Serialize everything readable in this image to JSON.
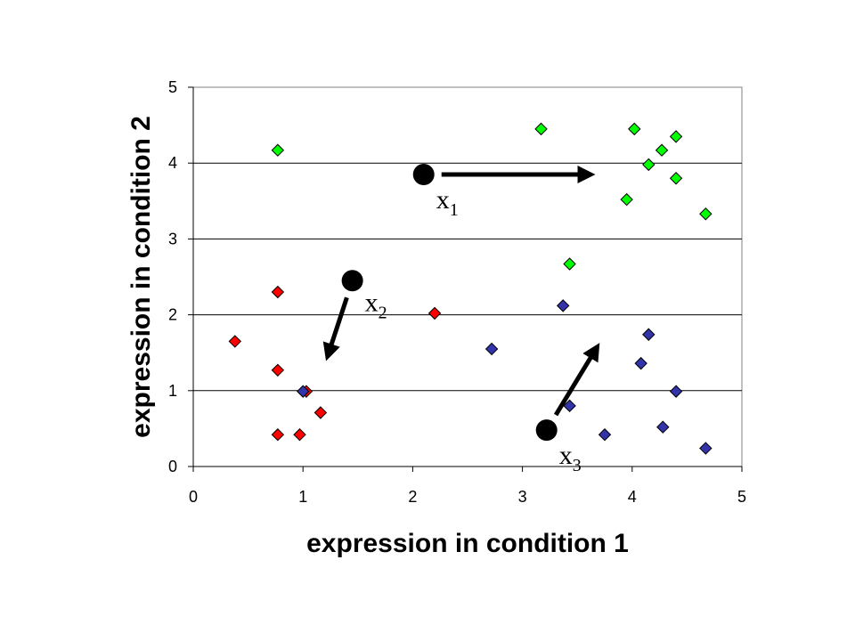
{
  "chart_data": {
    "type": "scatter",
    "title": "",
    "xlabel": "expression in condition 1",
    "ylabel": "expression in condition 2",
    "xlim": [
      0,
      5
    ],
    "ylim": [
      0,
      5
    ],
    "xticks": [
      0,
      1,
      2,
      3,
      4,
      5
    ],
    "yticks": [
      0,
      1,
      2,
      3,
      4,
      5
    ],
    "grid": "horizontal",
    "marker": "diamond",
    "series": [
      {
        "color": "#ff0000",
        "points": [
          [
            0.38,
            1.65
          ],
          [
            0.77,
            2.3
          ],
          [
            0.77,
            1.27
          ],
          [
            0.77,
            0.42
          ],
          [
            0.97,
            0.42
          ],
          [
            1.03,
            0.99
          ],
          [
            1.16,
            0.71
          ],
          [
            2.2,
            2.02
          ]
        ]
      },
      {
        "color": "#00ff00",
        "points": [
          [
            0.77,
            4.17
          ],
          [
            3.17,
            4.45
          ],
          [
            3.43,
            2.67
          ],
          [
            3.95,
            3.52
          ],
          [
            4.02,
            4.45
          ],
          [
            4.15,
            3.98
          ],
          [
            4.27,
            4.17
          ],
          [
            4.4,
            4.35
          ],
          [
            4.4,
            3.8
          ],
          [
            4.67,
            3.33
          ]
        ]
      },
      {
        "color": "#3333aa",
        "points": [
          [
            1.0,
            0.99
          ],
          [
            2.72,
            1.55
          ],
          [
            3.37,
            2.12
          ],
          [
            3.43,
            0.8
          ],
          [
            3.75,
            0.42
          ],
          [
            4.08,
            1.36
          ],
          [
            4.15,
            1.74
          ],
          [
            4.28,
            0.52
          ],
          [
            4.4,
            0.99
          ],
          [
            4.67,
            0.24
          ]
        ]
      }
    ],
    "centroids": [
      {
        "label": "x",
        "sub": "1",
        "x": 2.1,
        "y": 3.85,
        "arrow_to": [
          3.6,
          3.85
        ]
      },
      {
        "label": "x",
        "sub": "2",
        "x": 1.45,
        "y": 2.45,
        "arrow_to": [
          1.23,
          1.48
        ]
      },
      {
        "label": "x",
        "sub": "3",
        "x": 3.22,
        "y": 0.48,
        "arrow_to": [
          3.67,
          1.55
        ]
      }
    ]
  }
}
